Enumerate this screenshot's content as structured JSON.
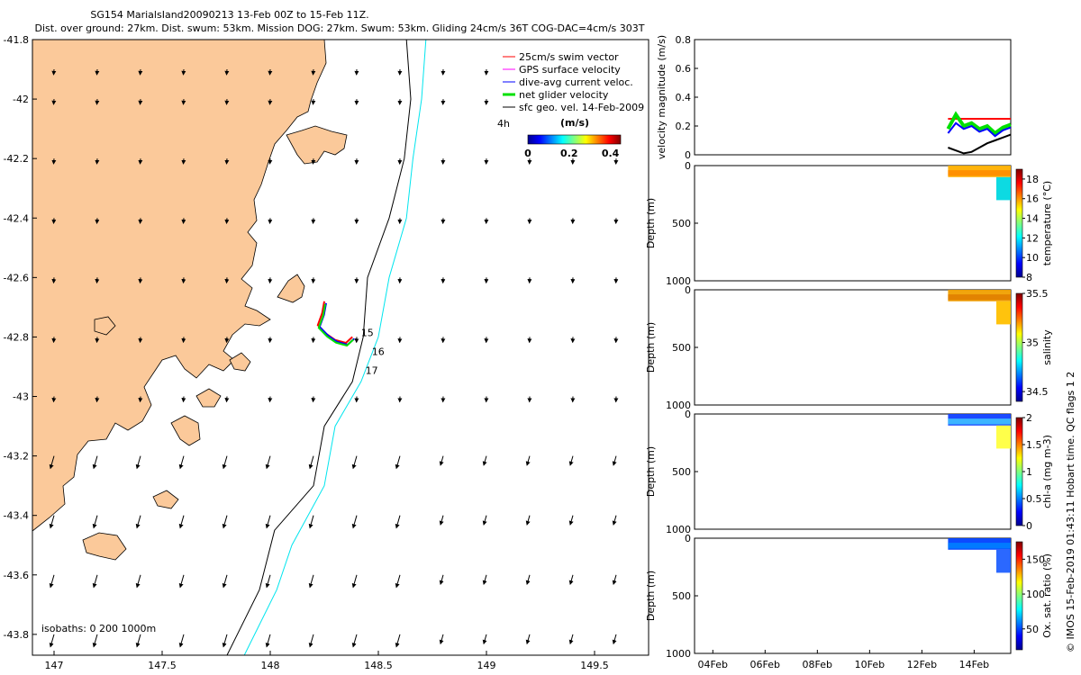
{
  "header": {
    "title_line1": "SG154 MarialsIand20090213 13-Feb 00Z to 15-Feb 11Z.",
    "title_line2": "Dist. over ground: 27km. Dist. swum: 53km. Mission DOG: 27km. Swum: 53km. Gliding 24cm/s 36T COG-DAC=4cm/s 303T"
  },
  "colors": {
    "land": "#fbc99a",
    "swim_vector": "#ff0000",
    "gps_velocity": "#ff00ff",
    "dac": "#0000ff",
    "net_velocity": "#00e000",
    "geostrophic": "#000000",
    "isobath_200": "#000000",
    "isobath_1000": "#00e5ee"
  },
  "map": {
    "xlim": [
      146.9,
      149.75
    ],
    "ylim": [
      -43.87,
      -41.8
    ],
    "x_ticks": [
      "147",
      "147.5",
      "148",
      "148.5",
      "149",
      "149.5"
    ],
    "x_tick_values": [
      147,
      147.5,
      148,
      148.5,
      149,
      149.5
    ],
    "y_ticks": [
      "-41.8",
      "-42",
      "-42.2",
      "-42.4",
      "-42.6",
      "-42.8",
      "-43",
      "-43.2",
      "-43.4",
      "-43.6",
      "-43.8"
    ],
    "y_tick_values": [
      -41.8,
      -42,
      -42.2,
      -42.4,
      -42.6,
      -42.8,
      -43,
      -43.2,
      -43.4,
      -43.6,
      -43.8
    ],
    "legend": [
      {
        "label": "25cm/s swim vector",
        "color": "#ff0000"
      },
      {
        "label": "GPS surface velocity",
        "color": "#ff00ff"
      },
      {
        "label": "dive-avg current veloc.",
        "color": "#0000ff"
      },
      {
        "label": "net glider velocity",
        "color": "#00e000"
      },
      {
        "label": "sfc geo. vel. 14-Feb-2009",
        "color": "#000000"
      }
    ],
    "time_label": "4h",
    "colorbar": {
      "label": "(m/s)",
      "ticks": [
        "0",
        "0.2",
        "0.4"
      ],
      "range": [
        0,
        0.45
      ]
    },
    "isobath_label": "isobaths: 0   200  1000m",
    "day_labels": [
      {
        "text": "15",
        "lon": 148.42,
        "lat": -42.797
      },
      {
        "text": "16",
        "lon": 148.47,
        "lat": -42.86
      },
      {
        "text": "17",
        "lon": 148.44,
        "lat": -42.925
      }
    ]
  },
  "right_panels": {
    "dates": [
      "04Feb",
      "06Feb",
      "08Feb",
      "10Feb",
      "12Feb",
      "14Feb"
    ],
    "velocity": {
      "ylabel": "velocity magnitude (m/s)",
      "ticks": [
        "0",
        "0.2",
        "0.4",
        "0.6",
        "0.8"
      ],
      "ylim": [
        0,
        0.8
      ]
    },
    "depth_label": "Depth (m)",
    "depth_ticks": [
      "0",
      "500",
      "1000"
    ],
    "temperature": {
      "label": "temperature (°C)",
      "ticks": [
        "8",
        "10",
        "12",
        "14",
        "16",
        "18"
      ],
      "range": [
        8,
        19
      ]
    },
    "salinity": {
      "label": "salinity",
      "ticks": [
        "34.5",
        "35",
        "35.5"
      ],
      "range": [
        34.4,
        35.5
      ]
    },
    "chla": {
      "label": "chl-a (mg m-3)",
      "ticks": [
        "0",
        "0.5",
        "1",
        "1.5",
        "2"
      ],
      "range": [
        0,
        2
      ]
    },
    "oxygen": {
      "label": "Ox. sat. ratio (%)",
      "ticks": [
        "50",
        "100",
        "150"
      ],
      "range": [
        20,
        175
      ]
    }
  },
  "footer": "© IMOS 15-Feb-2019 01:43:11 Hobart time. QC flags 1  2",
  "chart_data": [
    {
      "type": "line",
      "title": "SG154 MarialsIand20090213 13-Feb 00Z to 15-Feb 11Z.",
      "xlabel": "",
      "ylabel": "",
      "x_range": [
        146.9,
        149.75
      ],
      "y_range": [
        -43.87,
        -41.8
      ],
      "series": [
        {
          "name": "200m isobath",
          "points": [
            [
              148.63,
              -41.8
            ],
            [
              148.65,
              -42.0
            ],
            [
              148.62,
              -42.2
            ],
            [
              148.55,
              -42.4
            ],
            [
              148.45,
              -42.6
            ],
            [
              148.43,
              -42.8
            ],
            [
              148.38,
              -42.95
            ],
            [
              148.25,
              -43.1
            ],
            [
              148.2,
              -43.3
            ],
            [
              148.02,
              -43.45
            ],
            [
              147.95,
              -43.65
            ],
            [
              147.8,
              -43.87
            ]
          ]
        },
        {
          "name": "1000m isobath",
          "points": [
            [
              148.72,
              -41.8
            ],
            [
              148.7,
              -42.0
            ],
            [
              148.66,
              -42.2
            ],
            [
              148.63,
              -42.4
            ],
            [
              148.55,
              -42.6
            ],
            [
              148.5,
              -42.8
            ],
            [
              148.42,
              -42.95
            ],
            [
              148.3,
              -43.1
            ],
            [
              148.25,
              -43.3
            ],
            [
              148.1,
              -43.5
            ],
            [
              148.03,
              -43.65
            ],
            [
              147.88,
              -43.87
            ]
          ]
        },
        {
          "name": "glider track",
          "points": [
            [
              148.25,
              -42.68
            ],
            [
              148.24,
              -42.72
            ],
            [
              148.22,
              -42.76
            ],
            [
              148.26,
              -42.79
            ],
            [
              148.3,
              -42.81
            ],
            [
              148.35,
              -42.82
            ],
            [
              148.38,
              -42.8
            ]
          ]
        }
      ]
    },
    {
      "type": "line",
      "title": "",
      "xlabel": "",
      "ylabel": "velocity magnitude (m/s)",
      "x": [
        "13.0",
        "13.3",
        "13.6",
        "13.9",
        "14.2",
        "14.5",
        "14.8",
        "15.1",
        "15.4"
      ],
      "ylim": [
        0,
        0.8
      ],
      "series": [
        {
          "name": "",
          "values": [
            0.25,
            0.25,
            0.25,
            0.25,
            0.25,
            0.25,
            0.25,
            0.25,
            0.25
          ]
        },
        {
          "name": "",
          "values": [
            0.18,
            0.28,
            0.2,
            0.22,
            0.18,
            0.2,
            0.15,
            0.19,
            0.21
          ]
        },
        {
          "name": "",
          "values": [
            0.15,
            0.22,
            0.18,
            0.2,
            0.16,
            0.18,
            0.13,
            0.17,
            0.19
          ]
        },
        {
          "name": "",
          "values": [
            0.05,
            0.03,
            0.01,
            0.02,
            0.05,
            0.08,
            0.1,
            0.12,
            0.14
          ]
        }
      ]
    }
  ]
}
